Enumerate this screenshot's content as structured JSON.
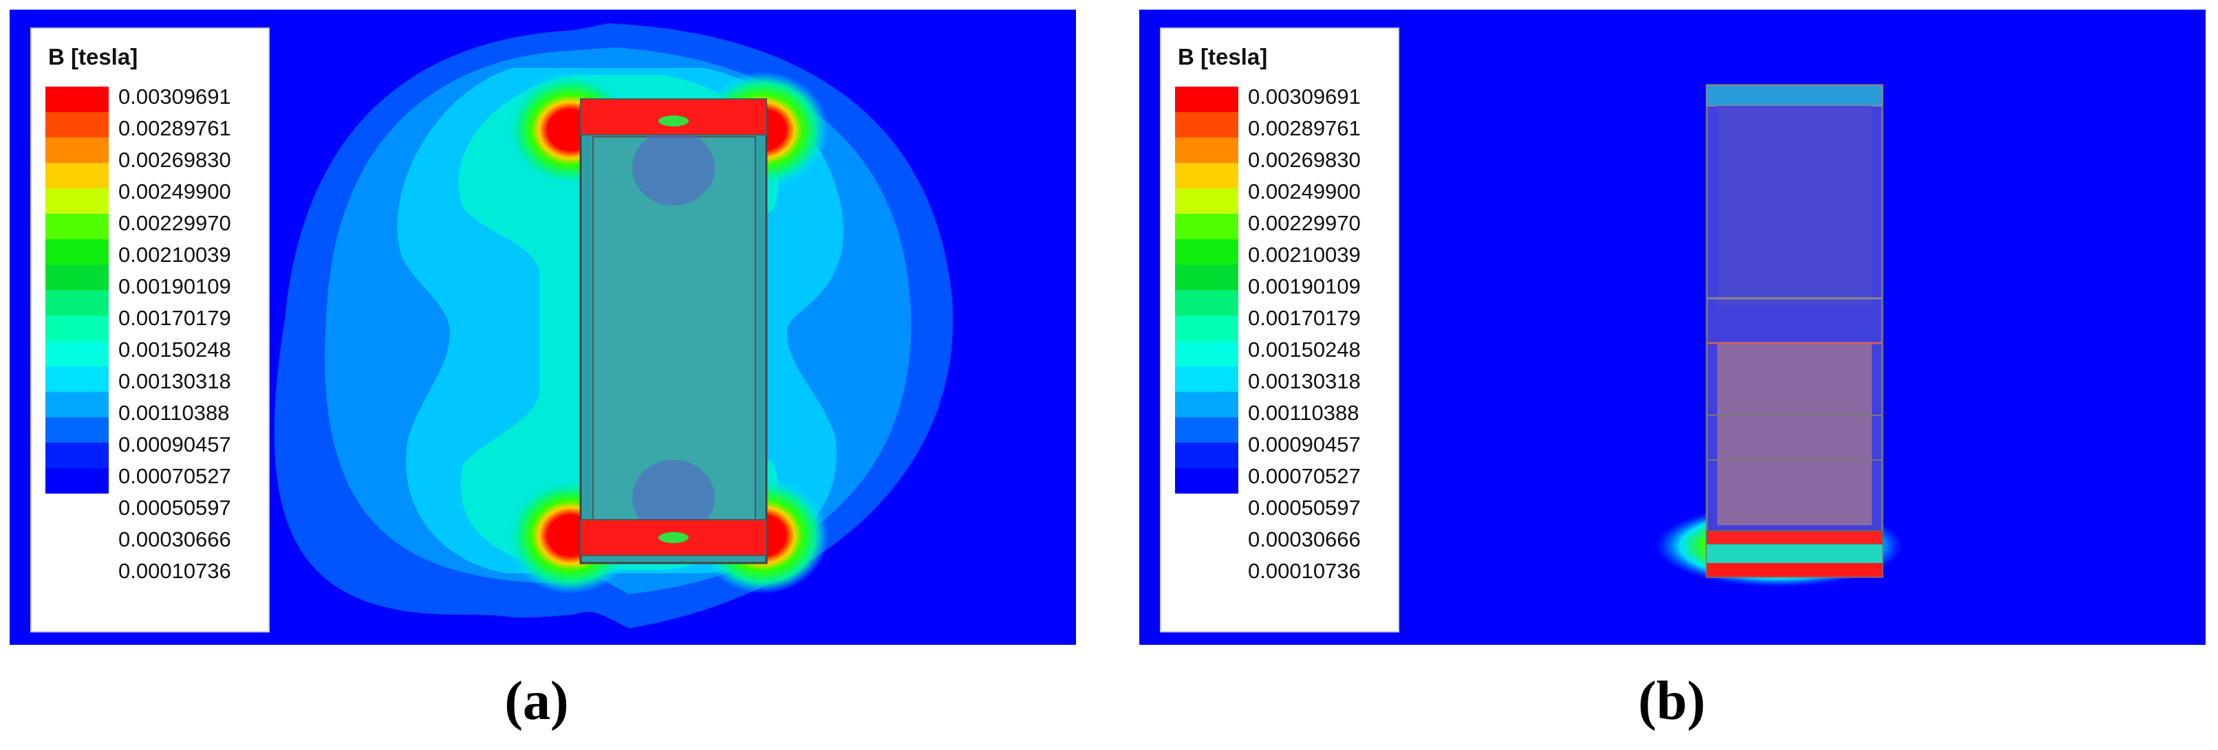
{
  "panels": [
    {
      "label": "(a)",
      "legend": {
        "title": "B [tesla]",
        "values": [
          "0.00309691",
          "0.00289761",
          "0.00269830",
          "0.00249900",
          "0.00229970",
          "0.00210039",
          "0.00190109",
          "0.00170179",
          "0.00150248",
          "0.00130318",
          "0.00110388",
          "0.00090457",
          "0.00070527",
          "0.00050597",
          "0.00030666",
          "0.00010736"
        ]
      }
    },
    {
      "label": "(b)",
      "legend": {
        "title": "B [tesla]",
        "values": [
          "0.00309691",
          "0.00289761",
          "0.00269830",
          "0.00249900",
          "0.00229970",
          "0.00210039",
          "0.00190109",
          "0.00170179",
          "0.00150248",
          "0.00130318",
          "0.00110388",
          "0.00090457",
          "0.00070527",
          "0.00050597",
          "0.00030666",
          "0.00010736"
        ]
      }
    }
  ],
  "colors": {
    "scale": [
      "#ff0000",
      "#ff4a00",
      "#ff8a00",
      "#ffd000",
      "#c8ff00",
      "#50ff00",
      "#10ee10",
      "#00dd30",
      "#00f07a",
      "#00ffb0",
      "#00ffe0",
      "#00e0ff",
      "#00a8ff",
      "#0068ff",
      "#0020ff",
      "#0000ff"
    ],
    "field_background": "#0000ff"
  }
}
